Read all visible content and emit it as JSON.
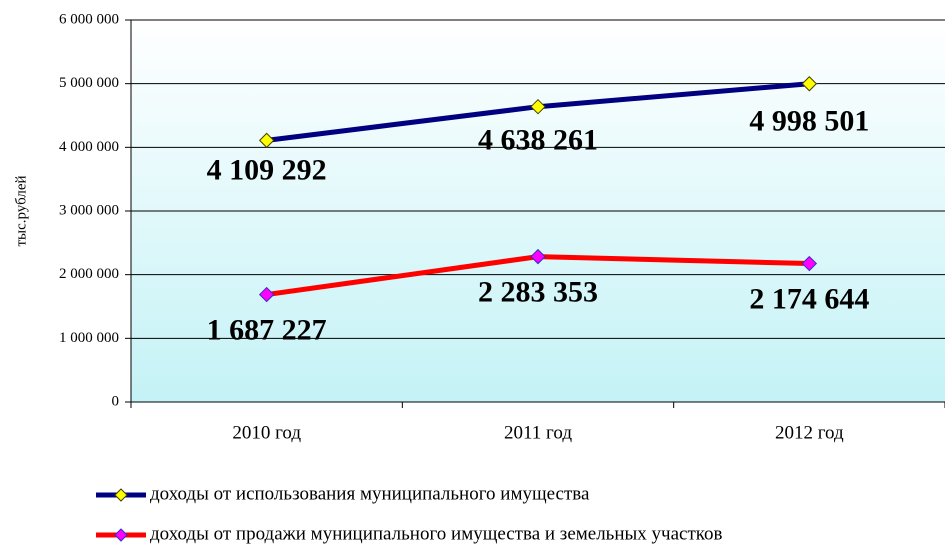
{
  "chart_data": {
    "type": "line",
    "ylabel": "тыс.рублей",
    "categories": [
      "2010 год",
      "2011 год",
      "2012 год"
    ],
    "series": [
      {
        "name": "доходы от использования муниципального имущества",
        "color": "#000080",
        "marker_color": "#ffff00",
        "values": [
          4109292,
          4638261,
          4998501
        ],
        "value_labels": [
          "4 109 292",
          "4 638 261",
          "4 998 501"
        ]
      },
      {
        "name": "доходы от продажи муниципального имущества и земельных участков",
        "color": "#ff0000",
        "marker_color": "#ff00ff",
        "values": [
          1687227,
          2283353,
          2174644
        ],
        "value_labels": [
          "1 687 227",
          "2 283 353",
          "2 174 644"
        ]
      }
    ],
    "ylim": [
      0,
      6000000
    ],
    "yticks": [
      {
        "value": 0,
        "label": "0"
      },
      {
        "value": 1000000,
        "label": "1 000 000"
      },
      {
        "value": 2000000,
        "label": "2 000 000"
      },
      {
        "value": 3000000,
        "label": "3 000 000"
      },
      {
        "value": 4000000,
        "label": "4 000 000"
      },
      {
        "value": 5000000,
        "label": "5 000 000"
      },
      {
        "value": 6000000,
        "label": "6 000 000"
      }
    ],
    "grid": true
  }
}
